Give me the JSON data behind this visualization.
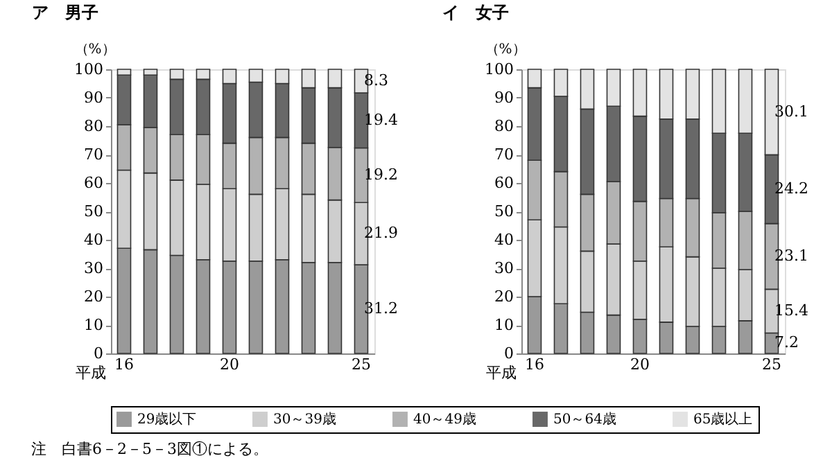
{
  "chart_data": [
    {
      "type": "bar",
      "stacked": true,
      "title": "ア　男子",
      "ylabel": "（%）",
      "xlabel": "平成",
      "categories": [
        "16",
        null,
        null,
        null,
        "20",
        null,
        null,
        null,
        null,
        "25"
      ],
      "ylim": [
        0,
        100
      ],
      "yticks": [
        0,
        10,
        20,
        30,
        40,
        50,
        60,
        70,
        80,
        90,
        100
      ],
      "legend": "bottom",
      "grid": false,
      "annotations": [
        "注　白書6－2－5－3図①による。"
      ],
      "series": [
        {
          "name": "29歳以下",
          "color": "#9a9a9a",
          "values": [
            37,
            36.5,
            34.5,
            33,
            32.5,
            32.5,
            33,
            32,
            32,
            31.2
          ],
          "value_labels": [
            null,
            null,
            null,
            null,
            null,
            null,
            null,
            null,
            null,
            "31.2"
          ]
        },
        {
          "name": "30～39歳",
          "color": "#cecece",
          "values": [
            27.5,
            27,
            26.5,
            26.5,
            25.5,
            23.5,
            25,
            24,
            22,
            21.9
          ],
          "value_labels": [
            null,
            null,
            null,
            null,
            null,
            null,
            null,
            null,
            null,
            "21.9"
          ]
        },
        {
          "name": "40～49歳",
          "color": "#b2b2b2",
          "values": [
            16,
            16,
            16,
            17.5,
            16,
            20,
            18,
            18,
            18.5,
            19.2
          ],
          "value_labels": [
            null,
            null,
            null,
            null,
            null,
            null,
            null,
            null,
            null,
            "19.2"
          ]
        },
        {
          "name": "50～64歳",
          "color": "#686868",
          "values": [
            17.5,
            18.5,
            19.5,
            19.5,
            21,
            19.5,
            19,
            19.5,
            21,
            19.4
          ],
          "value_labels": [
            null,
            null,
            null,
            null,
            null,
            null,
            null,
            null,
            null,
            "19.4"
          ]
        },
        {
          "name": "65歳以上",
          "color": "#e3e3e3",
          "values": [
            2,
            2,
            3.5,
            3.5,
            5,
            4.5,
            5,
            6.5,
            6.5,
            8.3
          ],
          "value_labels": [
            null,
            null,
            null,
            null,
            null,
            null,
            null,
            null,
            null,
            "8.3"
          ]
        }
      ]
    },
    {
      "type": "bar",
      "stacked": true,
      "title": "イ　女子",
      "ylabel": "（%）",
      "xlabel": "平成",
      "categories": [
        "16",
        null,
        null,
        null,
        "20",
        null,
        null,
        null,
        null,
        "25"
      ],
      "ylim": [
        0,
        100
      ],
      "yticks": [
        0,
        10,
        20,
        30,
        40,
        50,
        60,
        70,
        80,
        90,
        100
      ],
      "legend": "bottom",
      "grid": false,
      "series": [
        {
          "name": "29歳以下",
          "color": "#9a9a9a",
          "values": [
            20,
            17.5,
            14.5,
            13.5,
            12,
            11,
            9.5,
            9.5,
            11.5,
            7.2
          ],
          "value_labels": [
            null,
            null,
            null,
            null,
            null,
            null,
            null,
            null,
            null,
            "7.2"
          ]
        },
        {
          "name": "30～39歳",
          "color": "#cecece",
          "values": [
            27,
            27,
            21.5,
            25,
            20.5,
            26.5,
            24.5,
            20.5,
            18,
            15.4
          ],
          "value_labels": [
            null,
            null,
            null,
            null,
            null,
            null,
            null,
            null,
            null,
            "15.4"
          ]
        },
        {
          "name": "40～49歳",
          "color": "#b2b2b2",
          "values": [
            21,
            19.5,
            20,
            22,
            21,
            17,
            20.5,
            19.5,
            20.5,
            23.1
          ],
          "value_labels": [
            null,
            null,
            null,
            null,
            null,
            null,
            null,
            null,
            null,
            "23.1"
          ]
        },
        {
          "name": "50～64歳",
          "color": "#686868",
          "values": [
            25.5,
            26.5,
            30,
            26.5,
            30,
            28,
            28,
            28,
            27.5,
            24.2
          ],
          "value_labels": [
            null,
            null,
            null,
            null,
            null,
            null,
            null,
            null,
            null,
            "24.2"
          ]
        },
        {
          "name": "65歳以上",
          "color": "#e3e3e3",
          "values": [
            6.5,
            9.5,
            14,
            13,
            16.5,
            17.5,
            17.5,
            22.5,
            22.5,
            30.1
          ],
          "value_labels": [
            null,
            null,
            null,
            null,
            null,
            null,
            null,
            null,
            null,
            "30.1"
          ]
        }
      ]
    }
  ]
}
